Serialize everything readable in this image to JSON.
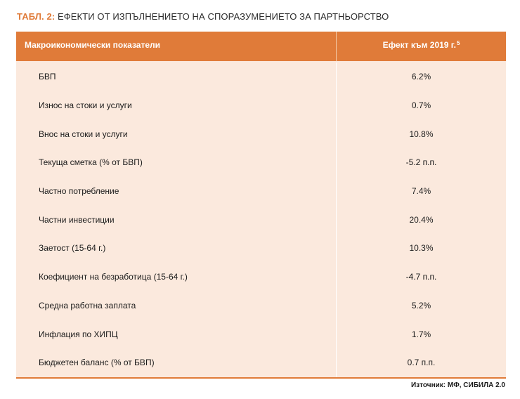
{
  "title": {
    "label": "ТАБЛ. 2:",
    "text": "ЕФЕКТИ ОТ ИЗПЪЛНЕНИЕТО НА СПОРАЗУМЕНИЕТО ЗА ПАРТНЬОРСТВО"
  },
  "table": {
    "header": {
      "indicator": "Макроикономически показатели",
      "effect": "Ефект към 2019 г.",
      "footnote": "5"
    },
    "rows": [
      {
        "indicator": "БВП",
        "value": "6.2%"
      },
      {
        "indicator": "Износ на стоки и услуги",
        "value": "0.7%"
      },
      {
        "indicator": "Внос на стоки и услуги",
        "value": "10.8%"
      },
      {
        "indicator": "Текуща сметка (% от БВП)",
        "value": "-5.2 п.п."
      },
      {
        "indicator": "Частно потребление",
        "value": "7.4%"
      },
      {
        "indicator": "Частни инвестиции",
        "value": "20.4%"
      },
      {
        "indicator": "Заетост (15-64 г.)",
        "value": "10.3%"
      },
      {
        "indicator": "Коефициент на безработица (15-64 г.)",
        "value": "-4.7 п.п."
      },
      {
        "indicator": "Средна работна заплата",
        "value": "5.2%"
      },
      {
        "indicator": "Инфлация по ХИПЦ",
        "value": "1.7%"
      },
      {
        "indicator": "Бюджетен баланс (% от БВП)",
        "value": "0.7 п.п."
      }
    ]
  },
  "source": "Източник: МФ, СИБИЛА 2.0",
  "colors": {
    "accent": "#e07b39",
    "row_bg": "#fbe9dd"
  }
}
